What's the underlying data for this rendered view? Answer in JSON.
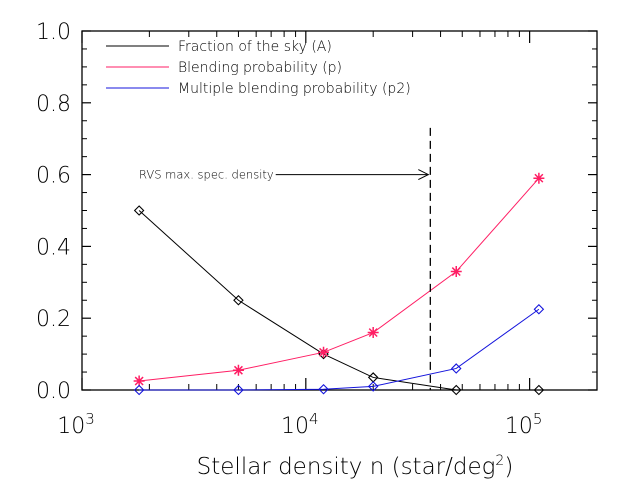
{
  "chart_data": {
    "type": "line",
    "title": "",
    "xlabel": "Stellar density n (star/deg",
    "xlabel_sup": "2",
    "xlabel_close": ")",
    "ylabel": "",
    "xscale": "log",
    "xlim": [
      1000,
      200000
    ],
    "ylim": [
      0,
      1.0
    ],
    "grid": false,
    "legend_position": "top-left",
    "x_ticks": [
      {
        "value": 1000,
        "base": "10",
        "exp": "3"
      },
      {
        "value": 10000,
        "base": "10",
        "exp": "4"
      },
      {
        "value": 100000,
        "base": "10",
        "exp": "5"
      }
    ],
    "y_ticks": [
      {
        "value": 0.0,
        "label": "0.0"
      },
      {
        "value": 0.2,
        "label": "0.2"
      },
      {
        "value": 0.4,
        "label": "0.4"
      },
      {
        "value": 0.6,
        "label": "0.6"
      },
      {
        "value": 0.8,
        "label": "0.8"
      },
      {
        "value": 1.0,
        "label": "1.0"
      }
    ],
    "x": [
      1800,
      5000,
      12000,
      20000,
      47000,
      110000
    ],
    "series": [
      {
        "name": "Fraction of the sky (A)",
        "color": "#000000",
        "marker": "diamond",
        "values": [
          0.5,
          0.25,
          0.1,
          0.035,
          0.0,
          0.0
        ]
      },
      {
        "name": "Blending probability (p)",
        "color": "#ff1e64",
        "marker": "star",
        "values": [
          0.025,
          0.055,
          0.105,
          0.16,
          0.33,
          0.59
        ]
      },
      {
        "name": "Multiple blending probability (p2)",
        "color": "#1414dc",
        "marker": "diamond",
        "values": [
          0.0,
          0.0,
          0.002,
          0.01,
          0.06,
          0.225
        ]
      }
    ],
    "vline": {
      "x": 36000,
      "style": "dashed",
      "y_top": 0.73
    },
    "annotation": {
      "text": "RVS max. spec. density",
      "y": 0.6,
      "arrow_to_x": 36000
    }
  }
}
